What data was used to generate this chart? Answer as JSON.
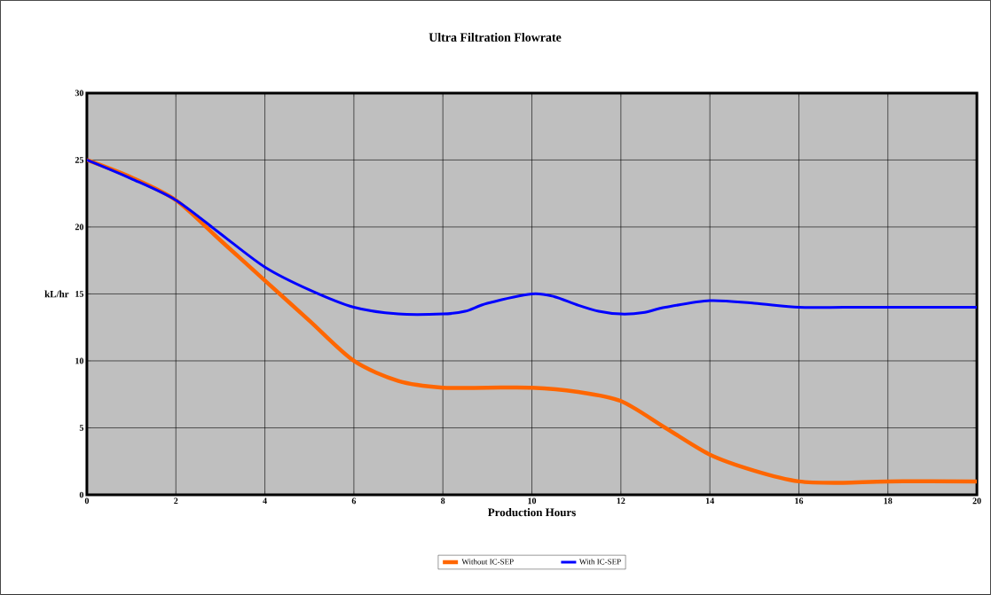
{
  "chart_data": {
    "type": "line",
    "title": "Ultra Filtration Flowrate",
    "xlabel": "Production Hours",
    "ylabel": "kL/hr",
    "xlim": [
      0,
      20
    ],
    "xticks": [
      0,
      2,
      4,
      6,
      8,
      10,
      12,
      14,
      16,
      18,
      20
    ],
    "ylim": [
      0,
      30
    ],
    "yticks": [
      0,
      5,
      10,
      15,
      20,
      25,
      30
    ],
    "grid": true,
    "legend": "bottom",
    "marker": "none",
    "line_style": "solid",
    "series": [
      {
        "name": "Without IC-SEP",
        "color": "#ff6600",
        "x": [
          0,
          1,
          2,
          3,
          4,
          5,
          6,
          7,
          8,
          9,
          10,
          11,
          12,
          13,
          14,
          15,
          16,
          17,
          18,
          20
        ],
        "values": [
          25,
          23.7,
          22,
          19,
          16,
          13,
          10,
          8.5,
          8,
          8,
          8,
          7.7,
          7,
          5,
          3,
          1.8,
          1,
          0.9,
          1,
          1
        ]
      },
      {
        "name": "With IC-SEP",
        "color": "#0000ff",
        "x": [
          0,
          1,
          2,
          3,
          4,
          5,
          6,
          7,
          8,
          8.5,
          9,
          10,
          10.5,
          11,
          11.5,
          12,
          12.5,
          13,
          14,
          15,
          16,
          17,
          18,
          20
        ],
        "values": [
          25,
          23.6,
          22,
          19.5,
          17,
          15.3,
          14,
          13.5,
          13.5,
          13.7,
          14.3,
          15,
          14.8,
          14.2,
          13.7,
          13.5,
          13.6,
          14,
          14.5,
          14.3,
          14,
          14,
          14,
          14
        ]
      }
    ]
  }
}
